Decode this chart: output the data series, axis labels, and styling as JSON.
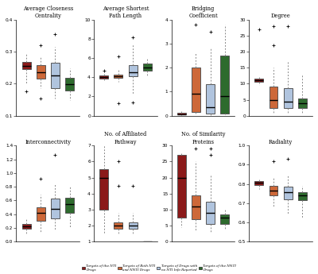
{
  "colors": {
    "NTI": "#8B1A1A",
    "Both": "#CD6839",
    "NoInfo": "#B0C4DE",
    "NNTI": "#2E6B2E"
  },
  "subplots": [
    {
      "title": "Average Closeness\nCentrality",
      "ylim": [
        0.1,
        0.4
      ],
      "yticks": [
        0.1,
        0.2,
        0.3,
        0.4
      ],
      "boxes": [
        {
          "med": 0.255,
          "q1": 0.245,
          "q3": 0.268,
          "whislo": 0.2,
          "whishi": 0.295,
          "fliers_lo": [
            0.175
          ],
          "fliers_hi": []
        },
        {
          "med": 0.235,
          "q1": 0.215,
          "q3": 0.258,
          "whislo": 0.185,
          "whishi": 0.285,
          "fliers_lo": [
            0.155
          ],
          "fliers_hi": [
            0.32
          ]
        },
        {
          "med": 0.225,
          "q1": 0.185,
          "q3": 0.265,
          "whislo": 0.155,
          "whishi": 0.315,
          "fliers_lo": [],
          "fliers_hi": [
            0.355
          ]
        },
        {
          "med": 0.198,
          "q1": 0.178,
          "q3": 0.218,
          "whislo": 0.148,
          "whishi": 0.248,
          "fliers_lo": [],
          "fliers_hi": []
        }
      ]
    },
    {
      "title": "Average Shortest\nPath Length",
      "ylim": [
        0,
        10
      ],
      "yticks": [
        0,
        2,
        4,
        6,
        8,
        10
      ],
      "boxes": [
        {
          "med": 4.05,
          "q1": 3.9,
          "q3": 4.2,
          "whislo": 3.6,
          "whishi": 4.55,
          "fliers_lo": [],
          "fliers_hi": [
            4.7
          ]
        },
        {
          "med": 4.1,
          "q1": 3.95,
          "q3": 4.3,
          "whislo": 3.5,
          "whishi": 4.8,
          "fliers_lo": [
            1.3
          ],
          "fliers_hi": [
            6.2
          ]
        },
        {
          "med": 4.55,
          "q1": 4.1,
          "q3": 5.3,
          "whislo": 2.2,
          "whishi": 7.5,
          "fliers_lo": [
            1.4
          ],
          "fliers_hi": [
            8.2
          ]
        },
        {
          "med": 5.0,
          "q1": 4.7,
          "q3": 5.4,
          "whislo": 4.2,
          "whishi": 5.9,
          "fliers_lo": [],
          "fliers_hi": []
        }
      ]
    },
    {
      "title": "Bridging\nCoefficient",
      "ylim": [
        0,
        4
      ],
      "yticks": [
        0,
        1,
        2,
        3,
        4
      ],
      "boxes": [
        {
          "med": 0.07,
          "q1": 0.04,
          "q3": 0.12,
          "whislo": 0.01,
          "whishi": 0.18,
          "fliers_lo": [],
          "fliers_hi": []
        },
        {
          "med": 0.9,
          "q1": 0.15,
          "q3": 2.0,
          "whislo": 0.05,
          "whishi": 2.65,
          "fliers_lo": [],
          "fliers_hi": [
            3.8
          ]
        },
        {
          "med": 0.35,
          "q1": 0.08,
          "q3": 1.3,
          "whislo": 0.02,
          "whishi": 2.85,
          "fliers_lo": [],
          "fliers_hi": [
            3.5
          ]
        },
        {
          "med": 0.8,
          "q1": 0.1,
          "q3": 2.5,
          "whislo": 0.05,
          "whishi": 3.8,
          "fliers_lo": [],
          "fliers_hi": []
        }
      ]
    },
    {
      "title": "Degree",
      "ylim": [
        0,
        30
      ],
      "yticks": [
        0,
        5,
        10,
        15,
        20,
        25,
        30
      ],
      "boxes": [
        {
          "med": 11.0,
          "q1": 10.5,
          "q3": 11.5,
          "whislo": 9.5,
          "whishi": 12.0,
          "fliers_lo": [],
          "fliers_hi": [
            27.0
          ]
        },
        {
          "med": 5.0,
          "q1": 2.5,
          "q3": 9.0,
          "whislo": 1.0,
          "whishi": 15.0,
          "fliers_lo": [],
          "fliers_hi": [
            22.0,
            28.0
          ]
        },
        {
          "med": 4.5,
          "q1": 2.5,
          "q3": 8.5,
          "whislo": 1.0,
          "whishi": 17.0,
          "fliers_lo": [],
          "fliers_hi": [
            28.0
          ]
        },
        {
          "med": 4.0,
          "q1": 2.5,
          "q3": 5.5,
          "whislo": 1.0,
          "whishi": 13.0,
          "fliers_lo": [],
          "fliers_hi": []
        }
      ]
    },
    {
      "title": "Interconnectivity",
      "ylim": [
        0.0,
        1.4
      ],
      "yticks": [
        0.0,
        0.2,
        0.4,
        0.6,
        0.8,
        1.0,
        1.2,
        1.4
      ],
      "boxes": [
        {
          "med": 0.22,
          "q1": 0.18,
          "q3": 0.26,
          "whislo": 0.1,
          "whishi": 0.34,
          "fliers_lo": [],
          "fliers_hi": []
        },
        {
          "med": 0.42,
          "q1": 0.3,
          "q3": 0.5,
          "whislo": 0.14,
          "whishi": 0.68,
          "fliers_lo": [],
          "fliers_hi": [
            0.92
          ]
        },
        {
          "med": 0.48,
          "q1": 0.34,
          "q3": 0.63,
          "whislo": 0.16,
          "whishi": 0.84,
          "fliers_lo": [],
          "fliers_hi": [
            1.26
          ]
        },
        {
          "med": 0.55,
          "q1": 0.42,
          "q3": 0.64,
          "whislo": 0.2,
          "whishi": 0.8,
          "fliers_lo": [],
          "fliers_hi": []
        }
      ]
    },
    {
      "title": "No. of Affiliated\nPathway",
      "ylim": [
        1,
        7
      ],
      "yticks": [
        1,
        2,
        3,
        4,
        5,
        6,
        7
      ],
      "boxes": [
        {
          "med": 5.0,
          "q1": 3.0,
          "q3": 5.5,
          "whislo": 1.5,
          "whishi": 7.0,
          "fliers_lo": [],
          "fliers_hi": []
        },
        {
          "med": 2.0,
          "q1": 1.8,
          "q3": 2.2,
          "whislo": 1.5,
          "whishi": 2.8,
          "fliers_lo": [],
          "fliers_hi": [
            4.5,
            6.0
          ]
        },
        {
          "med": 2.0,
          "q1": 1.8,
          "q3": 2.2,
          "whislo": 1.5,
          "whishi": 2.8,
          "fliers_lo": [],
          "fliers_hi": [
            4.5
          ]
        },
        {
          "med": 1.0,
          "q1": 1.0,
          "q3": 1.0,
          "whislo": 1.0,
          "whishi": 1.0,
          "fliers_lo": [],
          "fliers_hi": []
        }
      ]
    },
    {
      "title": "No. of Similarity\nProteins",
      "ylim": [
        0,
        30
      ],
      "yticks": [
        0,
        5,
        10,
        15,
        20,
        25,
        30
      ],
      "boxes": [
        {
          "med": 20.0,
          "q1": 7.5,
          "q3": 27.0,
          "whislo": 4.5,
          "whishi": 27.5,
          "fliers_lo": [],
          "fliers_hi": []
        },
        {
          "med": 11.0,
          "q1": 7.0,
          "q3": 14.5,
          "whislo": 3.5,
          "whishi": 25.0,
          "fliers_lo": [],
          "fliers_hi": [
            29.0
          ]
        },
        {
          "med": 9.0,
          "q1": 5.5,
          "q3": 12.5,
          "whislo": 3.0,
          "whishi": 21.0,
          "fliers_lo": [],
          "fliers_hi": [
            27.0,
            29.0
          ]
        },
        {
          "med": 7.5,
          "q1": 5.5,
          "q3": 8.5,
          "whislo": 4.0,
          "whishi": 10.0,
          "fliers_lo": [],
          "fliers_hi": []
        }
      ]
    },
    {
      "title": "Radiality",
      "ylim": [
        0.5,
        1.0
      ],
      "yticks": [
        0.5,
        0.6,
        0.7,
        0.8,
        0.9,
        1.0
      ],
      "boxes": [
        {
          "med": 0.805,
          "q1": 0.795,
          "q3": 0.815,
          "whislo": 0.775,
          "whishi": 0.825,
          "fliers_lo": [],
          "fliers_hi": []
        },
        {
          "med": 0.765,
          "q1": 0.74,
          "q3": 0.79,
          "whislo": 0.68,
          "whishi": 0.835,
          "fliers_lo": [],
          "fliers_hi": [
            0.92
          ]
        },
        {
          "med": 0.755,
          "q1": 0.72,
          "q3": 0.785,
          "whislo": 0.645,
          "whishi": 0.845,
          "fliers_lo": [],
          "fliers_hi": [
            0.93
          ]
        },
        {
          "med": 0.74,
          "q1": 0.715,
          "q3": 0.755,
          "whislo": 0.62,
          "whishi": 0.79,
          "fliers_lo": [],
          "fliers_hi": []
        }
      ]
    }
  ],
  "legend": [
    {
      "label": "Targets of the NTI\nDrugs",
      "color": "#8B1A1A"
    },
    {
      "label": "Targets of Both NTI\nand NNTI Drugs",
      "color": "#CD6839"
    },
    {
      "label": "Targets of Drugs with\nno NTI Info Reported",
      "color": "#B0C4DE"
    },
    {
      "label": "Targets of the NNTI\nDrugs",
      "color": "#2E6B2E"
    }
  ],
  "bg_color": "#FFFFFF",
  "box_width": 0.6,
  "linewidth": 0.7,
  "flier_size": 2.5
}
